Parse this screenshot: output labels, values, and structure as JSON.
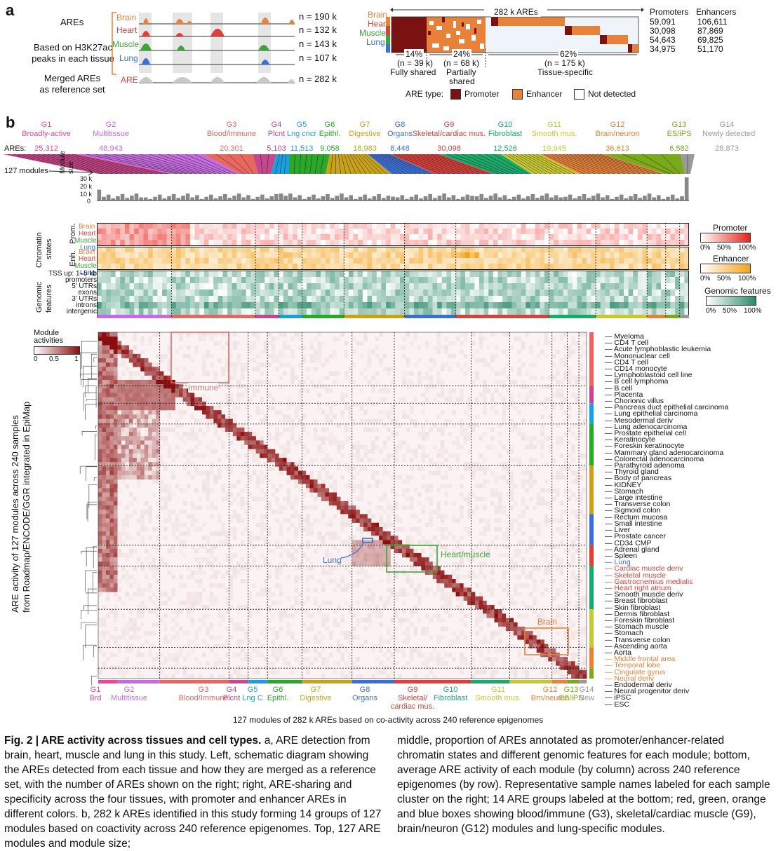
{
  "panelA": {
    "letter": "a",
    "areLabel": "AREs",
    "basedOn": "Based on H3K27ac\npeaks in each tissue",
    "basedOnLine1": "Based on H3K27ac",
    "basedOnLine2": "peaks in each tissue",
    "mergedLine1": "Merged AREs",
    "mergedLine2": "as reference set",
    "tissues": [
      {
        "name": "Brain",
        "n": "n = 190 k",
        "color": "#e8823a"
      },
      {
        "name": "Heart",
        "n": "n = 132 k",
        "color": "#d9413a"
      },
      {
        "name": "Muscle",
        "n": "n = 143 k",
        "color": "#3aa63a"
      },
      {
        "name": "Lung",
        "n": "n = 107 k",
        "color": "#3b6fd4"
      }
    ],
    "mergedTrack": {
      "name": "ARE",
      "n": "n = 282 k"
    },
    "right": {
      "topLabel": "282 k AREs",
      "colHeaders": [
        "Promoters",
        "Enhancers"
      ],
      "rows": [
        {
          "tissue": "Brain",
          "promoters": "59,091",
          "enhancers": "106,611"
        },
        {
          "tissue": "Heart",
          "promoters": "30,098",
          "enhancers": "87,869"
        },
        {
          "tissue": "Muscle",
          "promoters": "54,643",
          "enhancers": "69,825"
        },
        {
          "tissue": "Lung",
          "promoters": "34,975",
          "enhancers": "51,170"
        }
      ],
      "segments": [
        {
          "pct": "14%",
          "n": "(n = 39 k)",
          "label": "Fully shared"
        },
        {
          "pct": "24%",
          "n": "(n = 68 k)",
          "label": "Partially\nshared",
          "labelLine1": "Partially",
          "labelLine2": "shared"
        },
        {
          "pct": "62%",
          "n": "(n = 175 k)",
          "label": "Tissue-specific"
        }
      ],
      "legendTitle": "ARE type:",
      "legend": [
        {
          "label": "Promoter",
          "color": "#7a1212"
        },
        {
          "label": "Enhancer",
          "color": "#e8823a"
        },
        {
          "label": "Not detected",
          "color": "#ffffff"
        }
      ]
    }
  },
  "panelB": {
    "letter": "b",
    "groups": [
      {
        "id": "G1",
        "name": "Broadly-active",
        "count": "25,312",
        "color": "#e84a9a",
        "bottom": "Brd"
      },
      {
        "id": "G2",
        "name": "Multitissue",
        "count": "48,943",
        "color": "#c76be0",
        "bottom": "Multitissue"
      },
      {
        "id": "G3",
        "name": "Blood/immune",
        "count": "20,301",
        "color": "#e8685f",
        "bottom": "Blood/Immune"
      },
      {
        "id": "G4",
        "name": "Plcnt",
        "count": "5,103",
        "color": "#c4488e",
        "bottom": "Plcnt"
      },
      {
        "id": "G5",
        "name": "Lng cncr",
        "count": "11,513",
        "color": "#1a9fe0",
        "bottom": "Lng C"
      },
      {
        "id": "G6",
        "name": "Epithl.",
        "count": "9,058",
        "color": "#2aa82a",
        "bottom": "Epithl."
      },
      {
        "id": "G7",
        "name": "Digestive",
        "count": "18,983",
        "color": "#c9a21a",
        "bottom": "Digestive"
      },
      {
        "id": "G8",
        "name": "Organs",
        "count": "8,448",
        "color": "#3b6fd4",
        "bottom": "Organs"
      },
      {
        "id": "G9",
        "name": "Skeletal/cardiac mus.",
        "count": "30,098",
        "color": "#d9413a",
        "bottom": "Skeletal/\ncardiac mus.",
        "bottomLine1": "Skeletal/",
        "bottomLine2": "cardiac mus."
      },
      {
        "id": "G10",
        "name": "Fibroblast",
        "count": "12,526",
        "color": "#1aaa6a",
        "bottom": "Fibroblast"
      },
      {
        "id": "G11",
        "name": "Smooth mus.",
        "count": "19,945",
        "color": "#c8c832",
        "bottom": "Smooth mus."
      },
      {
        "id": "G12",
        "name": "Brain/neuron",
        "count": "36,613",
        "color": "#e8823a",
        "bottom": "Brn/neuron"
      },
      {
        "id": "G13",
        "name": "ES/iPS",
        "count": "6,582",
        "color": "#7aaa1a",
        "bottom": "ES/iPS"
      },
      {
        "id": "G14",
        "name": "Newly detected",
        "count": "28,873",
        "color": "#999999",
        "bottom": "New"
      }
    ],
    "aresLabel": "AREs:",
    "modulesLabel": "127 modules",
    "moduleSizeLabel": "Module\nsize",
    "moduleSizeLine1": "Module",
    "moduleSizeLine2": "size",
    "moduleSizeTicks": [
      "30 k",
      "20 k",
      "10 k",
      "0"
    ],
    "chromatinLabel": "Chromatin\nstates",
    "chromatinLine1": "Chromatin",
    "chromatinLine2": "states",
    "promLabel": "Prom.",
    "enhLabel": "Enh.",
    "genomicLine1": "Genomic",
    "genomicLine2": "features",
    "genomicRows": [
      "TSS up: 1–5 kb",
      "promoters",
      "5' UTRs",
      "exons",
      "3' UTRs",
      "introns",
      "intergenic"
    ],
    "legends": [
      {
        "title": "Promoter",
        "ticks": [
          "0%",
          "50%",
          "100%"
        ],
        "color": "#e8231a"
      },
      {
        "title": "Enhancer",
        "ticks": [
          "0%",
          "50%",
          "100%"
        ],
        "color": "#f2a31a"
      },
      {
        "title": "Genomic features",
        "ticks": [
          "0%",
          "50%",
          "100%"
        ],
        "color": "#2a8a6a"
      }
    ],
    "moduleActivitiesLine1": "Module",
    "moduleActivitiesLine2": "activities",
    "activityTicks": [
      "0",
      "0.5",
      "1"
    ],
    "yAxisLine1": "ARE activity of 127 modules across 240 samples",
    "yAxisLine2": "from Roadmap/ENCODE/GGR integrated in EpiMap",
    "boxLabels": [
      {
        "label": "Immune",
        "color": "#e8685f"
      },
      {
        "label": "Lung",
        "color": "#3b6fd4"
      },
      {
        "label": "Heart/muscle",
        "color": "#3aa63a"
      },
      {
        "label": "Brain",
        "color": "#e8823a"
      }
    ],
    "samples": [
      {
        "name": "Myeloma",
        "color": "#111111"
      },
      {
        "name": "CD4 T cell",
        "color": "#111111"
      },
      {
        "name": "Acute lymphoblastic leukemia",
        "color": "#111111"
      },
      {
        "name": "Mononuclear cell",
        "color": "#111111"
      },
      {
        "name": "CD4 T cell",
        "color": "#111111"
      },
      {
        "name": "CD14 monocyte",
        "color": "#111111"
      },
      {
        "name": "Lymphoblastoid cell line",
        "color": "#111111"
      },
      {
        "name": "B cell lymphoma",
        "color": "#111111"
      },
      {
        "name": "B cell",
        "color": "#111111"
      },
      {
        "name": "Placenta",
        "color": "#111111"
      },
      {
        "name": "Chorionic villus",
        "color": "#111111"
      },
      {
        "name": "Pancreas duct epithelial carcinoma",
        "color": "#111111"
      },
      {
        "name": "Lung epithelial carcinoma",
        "color": "#111111"
      },
      {
        "name": "Mesodermal deriv",
        "color": "#111111"
      },
      {
        "name": "Lung adenocarcinoma",
        "color": "#111111"
      },
      {
        "name": "Prostate epithelial cell",
        "color": "#111111"
      },
      {
        "name": "Keratinocyte",
        "color": "#111111"
      },
      {
        "name": "Foreskin keratinocyte",
        "color": "#111111"
      },
      {
        "name": "Mammary gland adenocarcinoma",
        "color": "#111111"
      },
      {
        "name": "Colorectal adenocarcinoma",
        "color": "#111111"
      },
      {
        "name": "Parathyroid adenoma",
        "color": "#111111"
      },
      {
        "name": "Thyroid gland",
        "color": "#111111"
      },
      {
        "name": "Body of pancreas",
        "color": "#111111"
      },
      {
        "name": "KIDNEY",
        "color": "#111111"
      },
      {
        "name": "Stomach",
        "color": "#111111"
      },
      {
        "name": "Large intestine",
        "color": "#111111"
      },
      {
        "name": "Transverse colon",
        "color": "#111111"
      },
      {
        "name": "Sigmoid colon",
        "color": "#111111"
      },
      {
        "name": "Rectum mucosa",
        "color": "#111111"
      },
      {
        "name": "Small intestine",
        "color": "#111111"
      },
      {
        "name": "Liver",
        "color": "#111111"
      },
      {
        "name": "Prostate cancer",
        "color": "#111111"
      },
      {
        "name": "CD34 CMP",
        "color": "#111111"
      },
      {
        "name": "Adrenal gland",
        "color": "#111111"
      },
      {
        "name": "Spleen",
        "color": "#111111"
      },
      {
        "name": "Lung",
        "color": "#3b6fd4"
      },
      {
        "name": "Cardiac muscle deriv",
        "color": "#d9413a"
      },
      {
        "name": "Skeletal muscle",
        "color": "#d9413a"
      },
      {
        "name": "Gastrocnemius medialis",
        "color": "#d9413a"
      },
      {
        "name": "Heart right atrium",
        "color": "#d9413a"
      },
      {
        "name": "Smooth muscle deriv",
        "color": "#111111"
      },
      {
        "name": "Breast fibroblast",
        "color": "#111111"
      },
      {
        "name": "Skin fibroblast",
        "color": "#111111"
      },
      {
        "name": "Dermis fibroblast",
        "color": "#111111"
      },
      {
        "name": "Foreskin fibroblast",
        "color": "#111111"
      },
      {
        "name": "Stomach muscle",
        "color": "#111111"
      },
      {
        "name": "Stomach",
        "color": "#111111"
      },
      {
        "name": "Transverse colon",
        "color": "#111111"
      },
      {
        "name": "Ascending aorta",
        "color": "#111111"
      },
      {
        "name": "Aorta",
        "color": "#111111"
      },
      {
        "name": "Middle frontal area",
        "color": "#e8823a"
      },
      {
        "name": "Temporal lobe",
        "color": "#e8823a"
      },
      {
        "name": "Cingulate gyrus",
        "color": "#e8823a"
      },
      {
        "name": "Neural deriv",
        "color": "#e8823a"
      },
      {
        "name": "Endodermal deriv",
        "color": "#111111"
      },
      {
        "name": "Neural progenitor deriv",
        "color": "#111111"
      },
      {
        "name": "iPSC",
        "color": "#111111"
      },
      {
        "name": "ESC",
        "color": "#111111"
      }
    ],
    "xAxisLabel": "127 modules of 282 k AREs based on co-activity across 240 reference epigenomes"
  },
  "caption": {
    "figLabel": "Fig. 2 | ARE activity across tissues and cell types.",
    "col1": " a, ARE detection from brain, heart, muscle and lung in this study. Left, schematic diagram showing the AREs detected from each tissue and how they are merged as a reference set, with the number of AREs shown on the right; right, ARE-sharing and specificity across the four tissues, with promoter and enhancer AREs in different colors. b, 282 k AREs identified in this study forming 14 groups of 127 modules based on coactivity across 240 reference epigenomes. Top, 127 ARE modules and module size;",
    "col2": "middle, proportion of AREs annotated as promoter/enhancer-related chromatin states and different genomic features for each module; bottom, average ARE activity of each module (by column) across 240 reference epigenomes (by row). Representative sample names labeled for each sample cluster on the right; 14 ARE groups labeled at the bottom; red, green, orange and blue boxes showing blood/immune (G3), skeletal/cardiac muscle (G9), brain/neuron (G12) modules and lung-specific modules."
  }
}
